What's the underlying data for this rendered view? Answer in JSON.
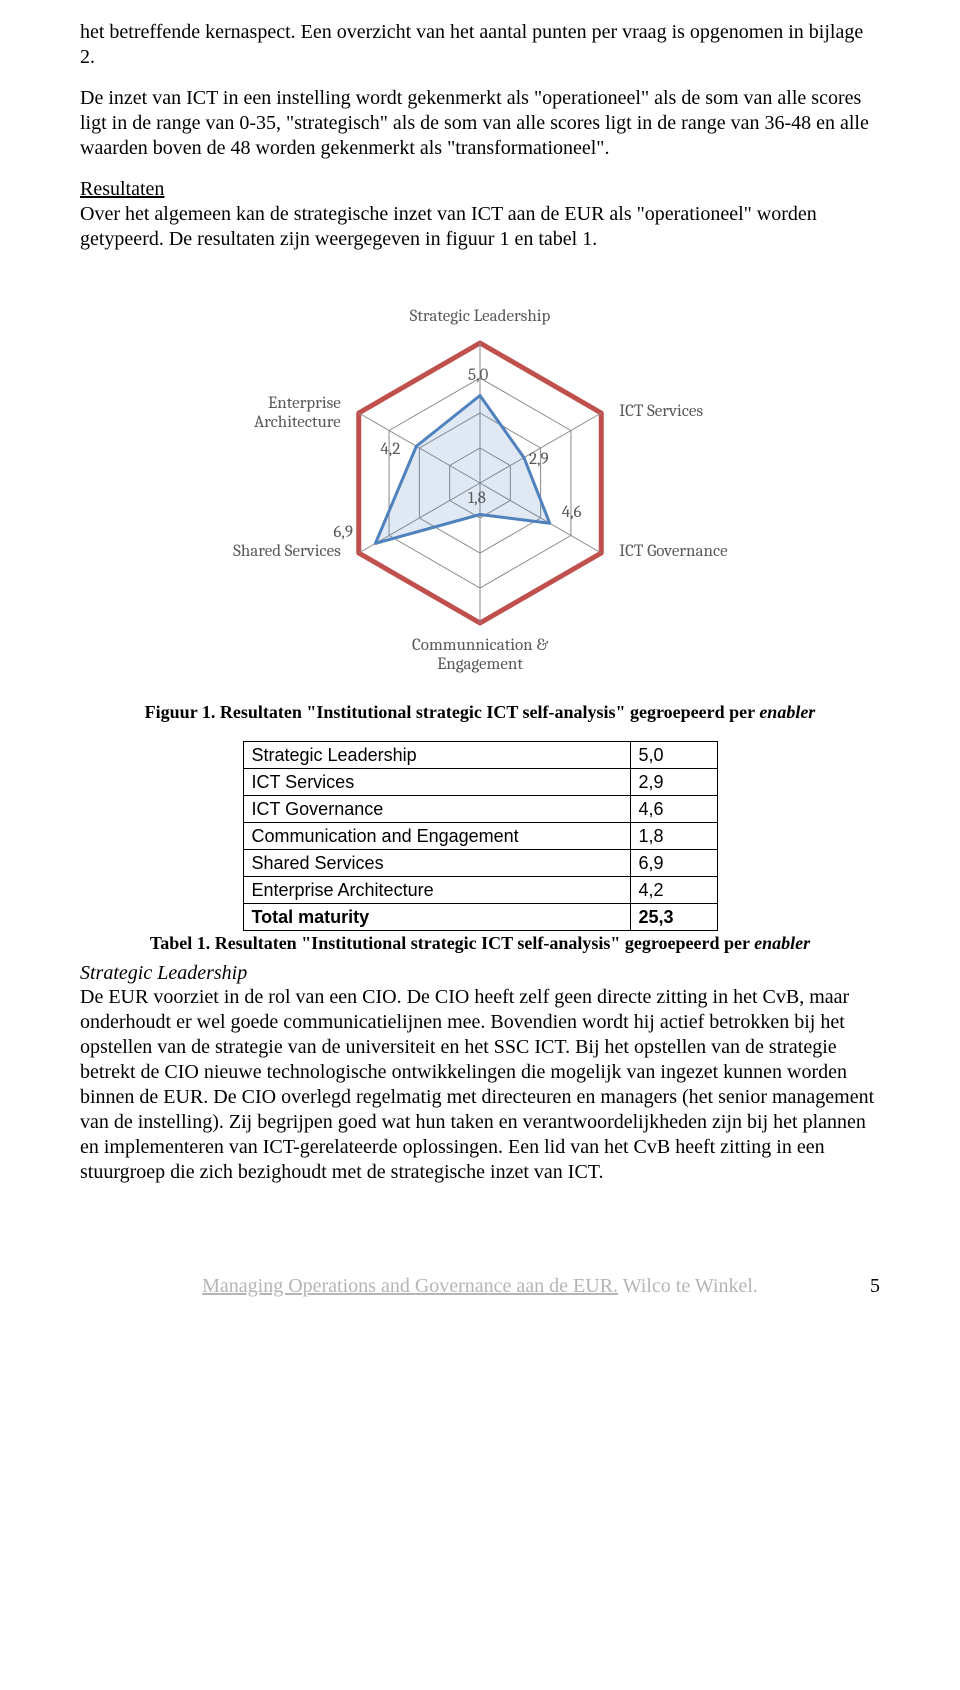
{
  "paragraphs": {
    "p1": "het betreffende kernaspect. Een overzicht van het aantal punten per vraag is opgenomen in bijlage 2.",
    "p2": "De inzet van ICT in een instelling wordt gekenmerkt als \"operationeel\" als de som van alle scores ligt in de range van 0-35, \"strategisch\" als de som van alle scores ligt in de range van 36-48 en alle waarden boven de 48 worden gekenmerkt als \"transformationeel\".",
    "resultaten_heading": "Resultaten",
    "p3": "Over het algemeen kan de strategische inzet van ICT aan de EUR als \"operationeel\" worden getypeerd. De resultaten zijn weergegeven in figuur 1 en tabel 1.",
    "section_head": "Strategic Leadership",
    "p4": "De EUR voorziet in de rol van een CIO. De CIO heeft zelf geen directe zitting in het CvB, maar onderhoudt er wel goede communicatielijnen mee. Bovendien wordt hij actief betrokken bij het opstellen van de strategie van de universiteit en het SSC ICT. Bij het opstellen van de strategie betrekt de CIO nieuwe technologische ontwikkelingen die mogelijk van ingezet kunnen worden binnen de EUR. De CIO overlegd regelmatig met directeuren en managers (het senior management van de instelling). Zij begrijpen goed wat hun taken en verantwoordelijkheden zijn bij het plannen en implementeren van ICT-gerelateerde oplossingen. Een lid van het CvB heeft zitting in een stuurgroep die zich bezighoudt met de strategische inzet van ICT."
  },
  "radar_chart": {
    "type": "radar",
    "max_value": 8,
    "rings": 4,
    "axes": [
      {
        "label": "Strategic Leadership",
        "value": 5.0,
        "display": "5,0"
      },
      {
        "label": "ICT Services",
        "value": 2.9,
        "display": "2,9"
      },
      {
        "label": "ICT Governance",
        "value": 4.6,
        "display": "4,6"
      },
      {
        "label": "Communnication &\nEngagement",
        "value": 1.8,
        "display": "1,8"
      },
      {
        "label": "Shared Services",
        "value": 6.9,
        "display": "6,9"
      },
      {
        "label": "Enterprise\nArchitecture",
        "value": 4.2,
        "display": "4,2"
      }
    ],
    "colors": {
      "grid": "#8a8a8a",
      "outer_ring": "#c0504d",
      "series_line": "#4f81bd",
      "series_fill": "rgba(79,129,189,0.18)",
      "label_text": "#595959",
      "background": "#ffffff"
    },
    "line_widths": {
      "grid": 1,
      "outer_ring": 5,
      "series": 3
    },
    "label_fontsize": 17
  },
  "figure_caption": {
    "prefix": "Figuur 1. Resultaten \"Institutional strategic ICT self-analysis\" gegroepeerd per ",
    "italic": "enabler"
  },
  "results_table": {
    "rows": [
      {
        "label": "Strategic Leadership",
        "value": "5,0"
      },
      {
        "label": "ICT Services",
        "value": "2,9"
      },
      {
        "label": "ICT Governance",
        "value": "4,6"
      },
      {
        "label": "Communication and Engagement",
        "value": "1,8"
      },
      {
        "label": "Shared Services",
        "value": "6,9"
      },
      {
        "label": "Enterprise Architecture",
        "value": "4,2"
      }
    ],
    "total": {
      "label": "Total maturity",
      "value": "25,3"
    }
  },
  "table_caption": {
    "prefix": "Tabel 1. Resultaten \"Institutional strategic ICT self-analysis\" gegroepeerd per ",
    "italic": "enabler"
  },
  "footer": {
    "text_underlined": "Managing Operations and Governance aan de EUR.",
    "text_plain": " Wilco te Winkel.",
    "page_number": "5"
  }
}
